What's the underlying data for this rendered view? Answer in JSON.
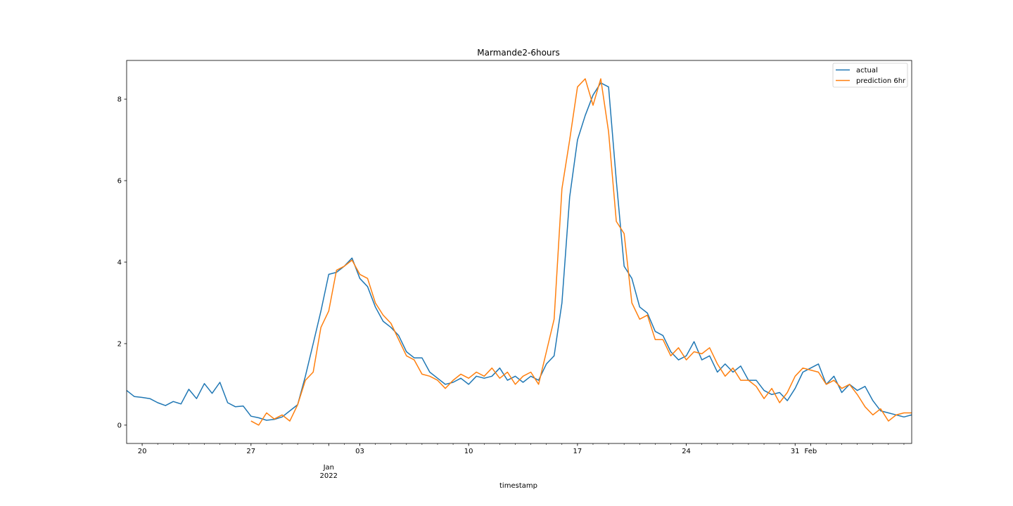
{
  "chart_data": {
    "type": "line",
    "title": "Marmande2-6hours",
    "xlabel": "timestamp",
    "ylabel": "",
    "xlim": [
      "2021-12-19 00:00",
      "2022-02-07 12:00"
    ],
    "ylim": [
      -0.45,
      8.95
    ],
    "grid": false,
    "legend_position": "top-right",
    "y_ticks": [
      0,
      2,
      4,
      6,
      8
    ],
    "y_tick_labels": [
      "0",
      "2",
      "4",
      "6",
      "8"
    ],
    "x_major_ticks": [
      {
        "date": "2021-12-20",
        "label": "20"
      },
      {
        "date": "2021-12-27",
        "label": "27"
      },
      {
        "date": "2022-01-01",
        "label": "Jan\n2022"
      },
      {
        "date": "2022-01-03",
        "label": "03"
      },
      {
        "date": "2022-01-10",
        "label": "10"
      },
      {
        "date": "2022-01-17",
        "label": "17"
      },
      {
        "date": "2022-01-24",
        "label": "24"
      },
      {
        "date": "2022-01-31",
        "label": "31"
      },
      {
        "date": "2022-02-01",
        "label": "Feb"
      }
    ],
    "series": [
      {
        "name": "actual",
        "color": "#1f77b4",
        "points": [
          [
            "2021-12-19 00:00",
            0.85
          ],
          [
            "2021-12-19 12:00",
            0.7
          ],
          [
            "2021-12-20 00:00",
            0.68
          ],
          [
            "2021-12-20 12:00",
            0.65
          ],
          [
            "2021-12-21 00:00",
            0.55
          ],
          [
            "2021-12-21 12:00",
            0.48
          ],
          [
            "2021-12-22 00:00",
            0.58
          ],
          [
            "2021-12-22 12:00",
            0.52
          ],
          [
            "2021-12-23 00:00",
            0.88
          ],
          [
            "2021-12-23 12:00",
            0.65
          ],
          [
            "2021-12-24 00:00",
            1.02
          ],
          [
            "2021-12-24 12:00",
            0.78
          ],
          [
            "2021-12-25 00:00",
            1.05
          ],
          [
            "2021-12-25 12:00",
            0.55
          ],
          [
            "2021-12-26 00:00",
            0.45
          ],
          [
            "2021-12-26 12:00",
            0.47
          ],
          [
            "2021-12-27 00:00",
            0.22
          ],
          [
            "2021-12-27 12:00",
            0.18
          ],
          [
            "2021-12-28 00:00",
            0.12
          ],
          [
            "2021-12-28 12:00",
            0.14
          ],
          [
            "2021-12-29 00:00",
            0.2
          ],
          [
            "2021-12-29 12:00",
            0.35
          ],
          [
            "2021-12-30 00:00",
            0.5
          ],
          [
            "2021-12-30 12:00",
            1.2
          ],
          [
            "2021-12-31 00:00",
            2.0
          ],
          [
            "2021-12-31 12:00",
            2.8
          ],
          [
            "2022-01-01 00:00",
            3.7
          ],
          [
            "2022-01-01 12:00",
            3.75
          ],
          [
            "2022-01-02 00:00",
            3.9
          ],
          [
            "2022-01-02 12:00",
            4.1
          ],
          [
            "2022-01-03 00:00",
            3.6
          ],
          [
            "2022-01-03 12:00",
            3.4
          ],
          [
            "2022-01-04 00:00",
            2.9
          ],
          [
            "2022-01-04 12:00",
            2.55
          ],
          [
            "2022-01-05 00:00",
            2.4
          ],
          [
            "2022-01-05 12:00",
            2.2
          ],
          [
            "2022-01-06 00:00",
            1.8
          ],
          [
            "2022-01-06 12:00",
            1.65
          ],
          [
            "2022-01-07 00:00",
            1.65
          ],
          [
            "2022-01-07 12:00",
            1.3
          ],
          [
            "2022-01-08 00:00",
            1.15
          ],
          [
            "2022-01-08 12:00",
            1.0
          ],
          [
            "2022-01-09 00:00",
            1.05
          ],
          [
            "2022-01-09 12:00",
            1.15
          ],
          [
            "2022-01-10 00:00",
            1.0
          ],
          [
            "2022-01-10 12:00",
            1.2
          ],
          [
            "2022-01-11 00:00",
            1.15
          ],
          [
            "2022-01-11 12:00",
            1.2
          ],
          [
            "2022-01-12 00:00",
            1.4
          ],
          [
            "2022-01-12 12:00",
            1.1
          ],
          [
            "2022-01-13 00:00",
            1.2
          ],
          [
            "2022-01-13 12:00",
            1.05
          ],
          [
            "2022-01-14 00:00",
            1.2
          ],
          [
            "2022-01-14 12:00",
            1.1
          ],
          [
            "2022-01-15 00:00",
            1.5
          ],
          [
            "2022-01-15 12:00",
            1.7
          ],
          [
            "2022-01-16 00:00",
            3.0
          ],
          [
            "2022-01-16 12:00",
            5.6
          ],
          [
            "2022-01-17 00:00",
            7.0
          ],
          [
            "2022-01-17 12:00",
            7.6
          ],
          [
            "2022-01-18 00:00",
            8.1
          ],
          [
            "2022-01-18 12:00",
            8.4
          ],
          [
            "2022-01-19 00:00",
            8.3
          ],
          [
            "2022-01-19 12:00",
            6.0
          ],
          [
            "2022-01-20 00:00",
            3.9
          ],
          [
            "2022-01-20 12:00",
            3.6
          ],
          [
            "2022-01-21 00:00",
            2.9
          ],
          [
            "2022-01-21 12:00",
            2.75
          ],
          [
            "2022-01-22 00:00",
            2.3
          ],
          [
            "2022-01-22 12:00",
            2.2
          ],
          [
            "2022-01-23 00:00",
            1.8
          ],
          [
            "2022-01-23 12:00",
            1.6
          ],
          [
            "2022-01-24 00:00",
            1.7
          ],
          [
            "2022-01-24 12:00",
            2.05
          ],
          [
            "2022-01-25 00:00",
            1.6
          ],
          [
            "2022-01-25 12:00",
            1.7
          ],
          [
            "2022-01-26 00:00",
            1.3
          ],
          [
            "2022-01-26 12:00",
            1.5
          ],
          [
            "2022-01-27 00:00",
            1.3
          ],
          [
            "2022-01-27 12:00",
            1.45
          ],
          [
            "2022-01-28 00:00",
            1.1
          ],
          [
            "2022-01-28 12:00",
            1.1
          ],
          [
            "2022-01-29 00:00",
            0.85
          ],
          [
            "2022-01-29 12:00",
            0.75
          ],
          [
            "2022-01-30 00:00",
            0.8
          ],
          [
            "2022-01-30 12:00",
            0.6
          ],
          [
            "2022-01-31 00:00",
            0.9
          ],
          [
            "2022-01-31 12:00",
            1.3
          ],
          [
            "2022-02-01 00:00",
            1.4
          ],
          [
            "2022-02-01 12:00",
            1.5
          ],
          [
            "2022-02-02 00:00",
            1.0
          ],
          [
            "2022-02-02 12:00",
            1.2
          ],
          [
            "2022-02-03 00:00",
            0.8
          ],
          [
            "2022-02-03 12:00",
            1.0
          ],
          [
            "2022-02-04 00:00",
            0.85
          ],
          [
            "2022-02-04 12:00",
            0.95
          ],
          [
            "2022-02-05 00:00",
            0.6
          ],
          [
            "2022-02-05 12:00",
            0.35
          ],
          [
            "2022-02-06 00:00",
            0.3
          ],
          [
            "2022-02-06 12:00",
            0.25
          ],
          [
            "2022-02-07 00:00",
            0.2
          ],
          [
            "2022-02-07 12:00",
            0.25
          ]
        ]
      },
      {
        "name": "prediction 6hr",
        "color": "#ff7f0e",
        "points": [
          [
            "2021-12-27 00:00",
            0.1
          ],
          [
            "2021-12-27 12:00",
            0.0
          ],
          [
            "2021-12-28 00:00",
            0.3
          ],
          [
            "2021-12-28 12:00",
            0.15
          ],
          [
            "2021-12-29 00:00",
            0.25
          ],
          [
            "2021-12-29 12:00",
            0.1
          ],
          [
            "2021-12-30 00:00",
            0.5
          ],
          [
            "2021-12-30 12:00",
            1.1
          ],
          [
            "2021-12-31 00:00",
            1.3
          ],
          [
            "2021-12-31 12:00",
            2.4
          ],
          [
            "2022-01-01 00:00",
            2.8
          ],
          [
            "2022-01-01 12:00",
            3.8
          ],
          [
            "2022-01-02 00:00",
            3.9
          ],
          [
            "2022-01-02 12:00",
            4.05
          ],
          [
            "2022-01-03 00:00",
            3.7
          ],
          [
            "2022-01-03 12:00",
            3.6
          ],
          [
            "2022-01-04 00:00",
            3.0
          ],
          [
            "2022-01-04 12:00",
            2.7
          ],
          [
            "2022-01-05 00:00",
            2.5
          ],
          [
            "2022-01-05 12:00",
            2.1
          ],
          [
            "2022-01-06 00:00",
            1.7
          ],
          [
            "2022-01-06 12:00",
            1.6
          ],
          [
            "2022-01-07 00:00",
            1.25
          ],
          [
            "2022-01-07 12:00",
            1.2
          ],
          [
            "2022-01-08 00:00",
            1.1
          ],
          [
            "2022-01-08 12:00",
            0.9
          ],
          [
            "2022-01-09 00:00",
            1.1
          ],
          [
            "2022-01-09 12:00",
            1.25
          ],
          [
            "2022-01-10 00:00",
            1.15
          ],
          [
            "2022-01-10 12:00",
            1.3
          ],
          [
            "2022-01-11 00:00",
            1.2
          ],
          [
            "2022-01-11 12:00",
            1.4
          ],
          [
            "2022-01-12 00:00",
            1.15
          ],
          [
            "2022-01-12 12:00",
            1.3
          ],
          [
            "2022-01-13 00:00",
            1.0
          ],
          [
            "2022-01-13 12:00",
            1.2
          ],
          [
            "2022-01-14 00:00",
            1.3
          ],
          [
            "2022-01-14 12:00",
            1.0
          ],
          [
            "2022-01-15 00:00",
            1.8
          ],
          [
            "2022-01-15 12:00",
            2.6
          ],
          [
            "2022-01-16 00:00",
            5.8
          ],
          [
            "2022-01-16 12:00",
            7.0
          ],
          [
            "2022-01-17 00:00",
            8.3
          ],
          [
            "2022-01-17 12:00",
            8.5
          ],
          [
            "2022-01-18 00:00",
            7.85
          ],
          [
            "2022-01-18 12:00",
            8.5
          ],
          [
            "2022-01-19 00:00",
            7.2
          ],
          [
            "2022-01-19 12:00",
            5.0
          ],
          [
            "2022-01-20 00:00",
            4.7
          ],
          [
            "2022-01-20 12:00",
            3.0
          ],
          [
            "2022-01-21 00:00",
            2.6
          ],
          [
            "2022-01-21 12:00",
            2.7
          ],
          [
            "2022-01-22 00:00",
            2.1
          ],
          [
            "2022-01-22 12:00",
            2.1
          ],
          [
            "2022-01-23 00:00",
            1.7
          ],
          [
            "2022-01-23 12:00",
            1.9
          ],
          [
            "2022-01-24 00:00",
            1.6
          ],
          [
            "2022-01-24 12:00",
            1.8
          ],
          [
            "2022-01-25 00:00",
            1.75
          ],
          [
            "2022-01-25 12:00",
            1.9
          ],
          [
            "2022-01-26 00:00",
            1.5
          ],
          [
            "2022-01-26 12:00",
            1.2
          ],
          [
            "2022-01-27 00:00",
            1.4
          ],
          [
            "2022-01-27 12:00",
            1.1
          ],
          [
            "2022-01-28 00:00",
            1.1
          ],
          [
            "2022-01-28 12:00",
            0.95
          ],
          [
            "2022-01-29 00:00",
            0.65
          ],
          [
            "2022-01-29 12:00",
            0.9
          ],
          [
            "2022-01-30 00:00",
            0.55
          ],
          [
            "2022-01-30 12:00",
            0.8
          ],
          [
            "2022-01-31 00:00",
            1.2
          ],
          [
            "2022-01-31 12:00",
            1.4
          ],
          [
            "2022-02-01 00:00",
            1.35
          ],
          [
            "2022-02-01 12:00",
            1.3
          ],
          [
            "2022-02-02 00:00",
            1.0
          ],
          [
            "2022-02-02 12:00",
            1.1
          ],
          [
            "2022-02-03 00:00",
            0.9
          ],
          [
            "2022-02-03 12:00",
            1.0
          ],
          [
            "2022-02-04 00:00",
            0.75
          ],
          [
            "2022-02-04 12:00",
            0.45
          ],
          [
            "2022-02-05 00:00",
            0.25
          ],
          [
            "2022-02-05 12:00",
            0.4
          ],
          [
            "2022-02-06 00:00",
            0.1
          ],
          [
            "2022-02-06 12:00",
            0.25
          ],
          [
            "2022-02-07 00:00",
            0.3
          ],
          [
            "2022-02-07 12:00",
            0.3
          ]
        ]
      }
    ]
  }
}
